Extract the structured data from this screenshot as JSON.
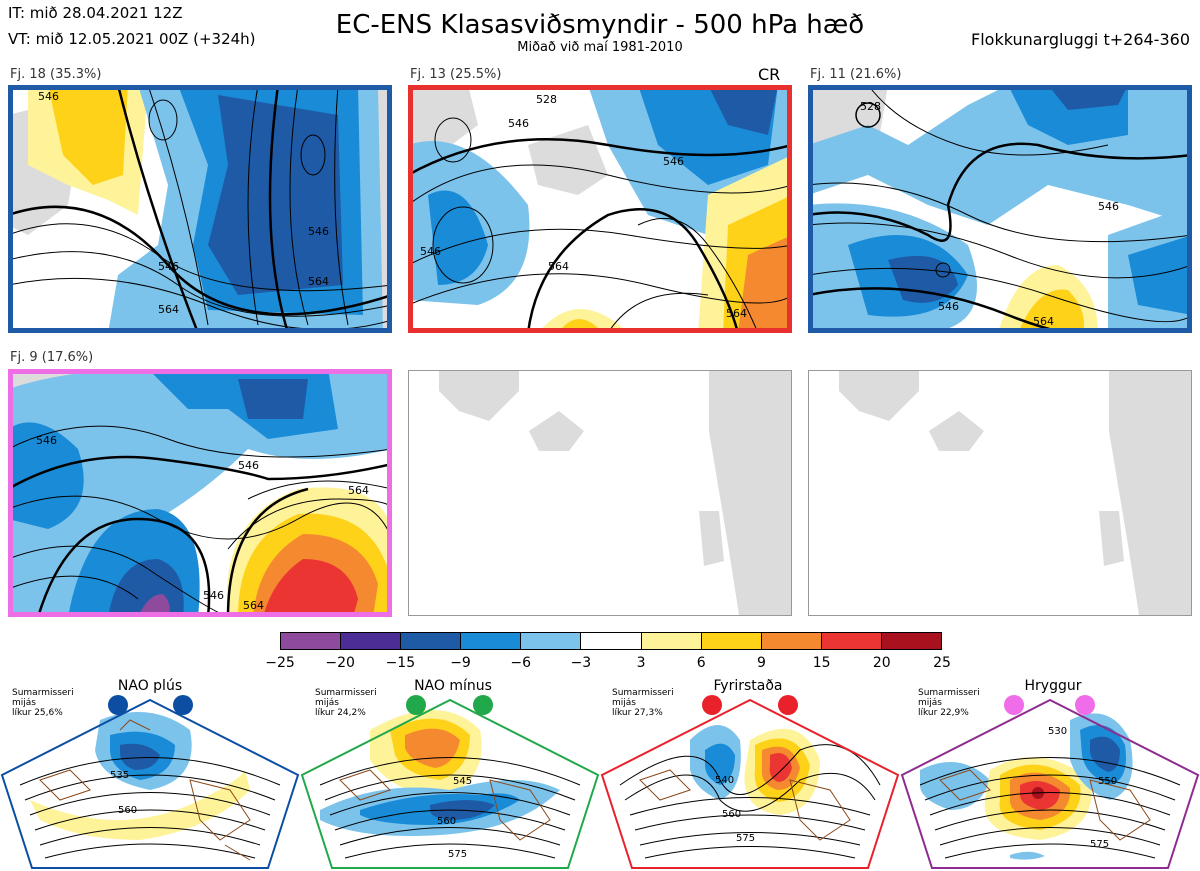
{
  "header": {
    "it_line": "IT: mið 28.04.2021 12Z",
    "vt_line": "VT: mið 12.05.2021 00Z  (+324h)",
    "title": "EC-ENS Klasasviðsmyndir - 500 hPa hæð",
    "subtitle": "Miðað við maí 1981-2010",
    "window": "Flokkunargluggi t+264-360"
  },
  "panels": [
    {
      "label": "Fj. 18 (35.3%)",
      "border_color": "#1f5aa6",
      "contours": [
        "546",
        "564",
        "546",
        "564",
        "546"
      ],
      "badge": ""
    },
    {
      "label": "Fj. 13 (25.5%)",
      "border_color": "#e8312f",
      "contours": [
        "528",
        "546",
        "546",
        "564",
        "564",
        "546"
      ],
      "badge": "CR"
    },
    {
      "label": "Fj. 11 (21.6%)",
      "border_color": "#1f5aa6",
      "contours": [
        "528",
        "546",
        "546",
        "564"
      ],
      "badge": ""
    },
    {
      "label": "Fj. 9 (17.6%)",
      "border_color": "#ee6ee6",
      "contours": [
        "546",
        "546",
        "564",
        "546",
        "564"
      ],
      "badge": ""
    }
  ],
  "legend": {
    "colors": [
      "#8e4b9e",
      "#4c2d96",
      "#1f5aa6",
      "#1a8bd6",
      "#7cc3ec",
      "#ffffff",
      "#fff39a",
      "#ffd21a",
      "#f5892f",
      "#ea3532",
      "#a8111d"
    ],
    "ticks": [
      "−25",
      "−20",
      "−15",
      "−9",
      "−6",
      "−3",
      "3",
      "6",
      "9",
      "15",
      "20",
      "25"
    ]
  },
  "regimes": [
    {
      "name": "NAO plús",
      "info": [
        "Sumarmisseri",
        "mijás",
        "líkur 25,6%"
      ],
      "color": "#0b4ea2",
      "contours": [
        "535",
        "560"
      ]
    },
    {
      "name": "NAO mínus",
      "info": [
        "Sumarmisseri",
        "mijás",
        "líkur 24,2%"
      ],
      "color": "#20a84a",
      "contours": [
        "545",
        "560",
        "575"
      ]
    },
    {
      "name": "Fyrirstaða",
      "info": [
        "Sumarmisseri",
        "mijás",
        "líkur 27,3%"
      ],
      "color": "#e8212a",
      "contours": [
        "540",
        "560",
        "575"
      ]
    },
    {
      "name": "Hryggur",
      "info": [
        "Sumarmisseri",
        "mijás",
        "líkur 22,9%"
      ],
      "color": "#ef6de8",
      "contours": [
        "530",
        "550",
        "575"
      ]
    }
  ]
}
